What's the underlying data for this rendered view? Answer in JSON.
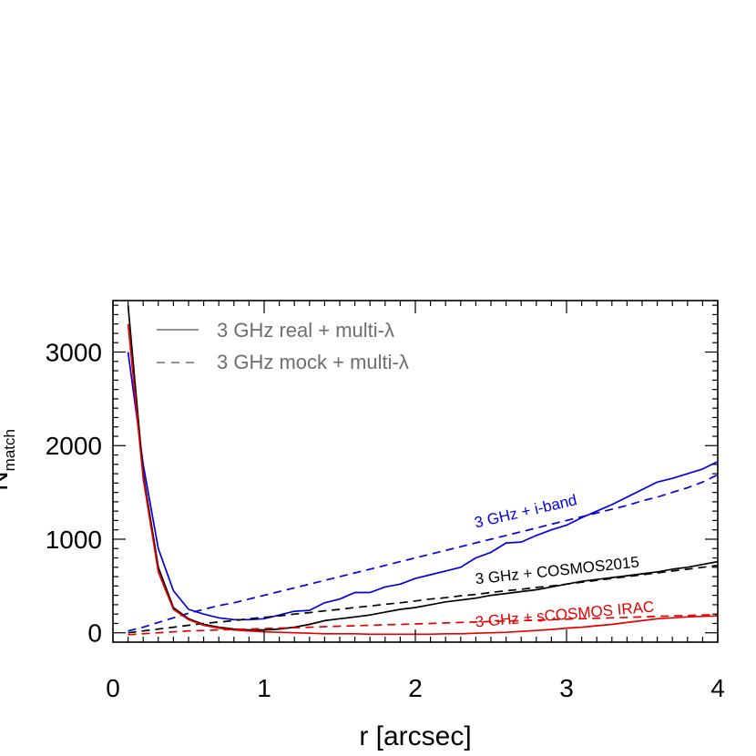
{
  "chart_data": {
    "type": "line",
    "xlabel": "r [arcsec]",
    "ylabel": "N",
    "ylabel_subscript": "match",
    "xlim": [
      0,
      4
    ],
    "ylim": [
      -100,
      3550
    ],
    "xticks": [
      0,
      1,
      2,
      3,
      4
    ],
    "xtick_labels": [
      "0",
      "1",
      "2",
      "3",
      "4"
    ],
    "yticks": [
      0,
      1000,
      2000,
      3000
    ],
    "ytick_labels": [
      "0",
      "1000",
      "2000",
      "3000"
    ],
    "grid": false,
    "legend": {
      "placement": "top-left",
      "entries": [
        {
          "label": "3 GHz real + multi-λ",
          "style": "solid"
        },
        {
          "label": "3 GHz mock + multi-λ",
          "style": "dashed"
        }
      ]
    },
    "annotations": [
      {
        "text": "3 GHz + i-band",
        "color": "#0000e6",
        "x": 2.4,
        "y": 1120,
        "rotate": -13
      },
      {
        "text": "3 GHz + COSMOS2015",
        "color": "#000000",
        "x": 2.4,
        "y": 520,
        "rotate": -6
      },
      {
        "text": "3 GHz + sCOSMOS IRAC",
        "color": "#e60000",
        "x": 2.4,
        "y": 60,
        "rotate": -5
      }
    ],
    "series": [
      {
        "group": "i-band",
        "style": "solid",
        "color": "#0000e6",
        "x": [
          0.1,
          0.2,
          0.3,
          0.4,
          0.5,
          0.6,
          0.7,
          0.8,
          0.9,
          1.0,
          1.1,
          1.2,
          1.3,
          1.4,
          1.5,
          1.6,
          1.7,
          1.8,
          1.9,
          2.0,
          2.1,
          2.2,
          2.3,
          2.4,
          2.5,
          2.6,
          2.7,
          2.8,
          2.9,
          3.0,
          3.1,
          3.2,
          3.3,
          3.4,
          3.5,
          3.6,
          3.7,
          3.8,
          3.9,
          4.0
        ],
        "y": [
          3000,
          1800,
          900,
          450,
          250,
          200,
          160,
          140,
          140,
          150,
          190,
          230,
          240,
          320,
          360,
          430,
          430,
          490,
          520,
          580,
          620,
          660,
          700,
          800,
          860,
          960,
          970,
          1040,
          1100,
          1150,
          1230,
          1300,
          1370,
          1450,
          1530,
          1610,
          1650,
          1700,
          1750,
          1830
        ]
      },
      {
        "group": "i-band",
        "style": "dashed",
        "color": "#0000e6",
        "x": [
          0.1,
          0.2,
          0.3,
          0.4,
          0.5,
          0.6,
          0.7,
          0.8,
          0.9,
          1.0,
          1.1,
          1.2,
          1.3,
          1.4,
          1.5,
          1.6,
          1.7,
          1.8,
          1.9,
          2.0,
          2.1,
          2.2,
          2.3,
          2.4,
          2.5,
          2.6,
          2.7,
          2.8,
          2.9,
          3.0,
          3.1,
          3.2,
          3.3,
          3.4,
          3.5,
          3.6,
          3.7,
          3.8,
          3.9,
          4.0
        ],
        "y": [
          20,
          60,
          110,
          160,
          210,
          250,
          290,
          320,
          360,
          400,
          440,
          480,
          520,
          560,
          600,
          640,
          680,
          720,
          760,
          800,
          840,
          880,
          920,
          960,
          1000,
          1040,
          1080,
          1120,
          1160,
          1200,
          1240,
          1280,
          1320,
          1360,
          1410,
          1450,
          1500,
          1550,
          1610,
          1690
        ]
      },
      {
        "group": "COSMOS2015",
        "style": "solid",
        "color": "#000000",
        "x": [
          0.1,
          0.2,
          0.3,
          0.4,
          0.5,
          0.6,
          0.7,
          0.8,
          0.9,
          1.0,
          1.1,
          1.2,
          1.3,
          1.4,
          1.5,
          1.6,
          1.7,
          1.8,
          1.9,
          2.0,
          2.1,
          2.2,
          2.3,
          2.4,
          2.5,
          2.6,
          2.7,
          2.8,
          2.9,
          3.0,
          3.1,
          3.2,
          3.3,
          3.4,
          3.5,
          3.6,
          3.7,
          3.8,
          3.9,
          4.0
        ],
        "y": [
          3500,
          1700,
          700,
          270,
          150,
          90,
          60,
          40,
          30,
          30,
          40,
          60,
          90,
          130,
          150,
          170,
          190,
          220,
          250,
          270,
          300,
          330,
          350,
          370,
          400,
          420,
          440,
          460,
          490,
          520,
          550,
          570,
          590,
          610,
          630,
          650,
          680,
          700,
          730,
          760
        ]
      },
      {
        "group": "COSMOS2015",
        "style": "dashed",
        "color": "#000000",
        "x": [
          0.1,
          0.2,
          0.3,
          0.4,
          0.5,
          0.6,
          0.7,
          0.8,
          0.9,
          1.0,
          1.1,
          1.2,
          1.3,
          1.4,
          1.5,
          1.6,
          1.7,
          1.8,
          1.9,
          2.0,
          2.1,
          2.2,
          2.3,
          2.4,
          2.5,
          2.6,
          2.7,
          2.8,
          2.9,
          3.0,
          3.1,
          3.2,
          3.3,
          3.4,
          3.5,
          3.6,
          3.7,
          3.8,
          3.9,
          4.0
        ],
        "y": [
          0,
          20,
          40,
          60,
          80,
          100,
          115,
          130,
          150,
          165,
          180,
          200,
          215,
          235,
          250,
          270,
          285,
          305,
          320,
          340,
          360,
          375,
          395,
          410,
          430,
          450,
          465,
          485,
          500,
          520,
          540,
          560,
          580,
          600,
          620,
          640,
          660,
          680,
          700,
          720
        ]
      },
      {
        "group": "sCOSMOS IRAC",
        "style": "solid",
        "color": "#e60000",
        "x": [
          0.1,
          0.2,
          0.3,
          0.4,
          0.5,
          0.6,
          0.7,
          0.8,
          0.9,
          1.0,
          1.1,
          1.2,
          1.3,
          1.4,
          1.5,
          1.6,
          1.7,
          1.8,
          1.9,
          2.0,
          2.1,
          2.2,
          2.3,
          2.4,
          2.5,
          2.6,
          2.7,
          2.8,
          2.9,
          3.0,
          3.1,
          3.2,
          3.3,
          3.4,
          3.5,
          3.6,
          3.7,
          3.8,
          3.9,
          4.0
        ],
        "y": [
          3300,
          1650,
          650,
          250,
          140,
          80,
          50,
          30,
          20,
          10,
          5,
          0,
          -5,
          -10,
          -10,
          -10,
          -15,
          -15,
          -15,
          -15,
          -15,
          -10,
          -10,
          -5,
          0,
          5,
          15,
          25,
          35,
          50,
          60,
          75,
          90,
          110,
          130,
          150,
          160,
          170,
          175,
          180
        ]
      },
      {
        "group": "sCOSMOS IRAC",
        "style": "dashed",
        "color": "#e60000",
        "x": [
          0.1,
          0.2,
          0.3,
          0.4,
          0.5,
          0.6,
          0.7,
          0.8,
          0.9,
          1.0,
          1.1,
          1.2,
          1.3,
          1.4,
          1.5,
          1.6,
          1.7,
          1.8,
          1.9,
          2.0,
          2.1,
          2.2,
          2.3,
          2.4,
          2.5,
          2.6,
          2.7,
          2.8,
          2.9,
          3.0,
          3.1,
          3.2,
          3.3,
          3.4,
          3.5,
          3.6,
          3.7,
          3.8,
          3.9,
          4.0
        ],
        "y": [
          -20,
          -10,
          0,
          10,
          20,
          25,
          30,
          35,
          40,
          45,
          50,
          55,
          60,
          65,
          70,
          75,
          80,
          85,
          90,
          95,
          100,
          105,
          110,
          115,
          120,
          125,
          130,
          135,
          140,
          145,
          150,
          155,
          160,
          165,
          170,
          175,
          180,
          185,
          190,
          195
        ]
      }
    ]
  }
}
